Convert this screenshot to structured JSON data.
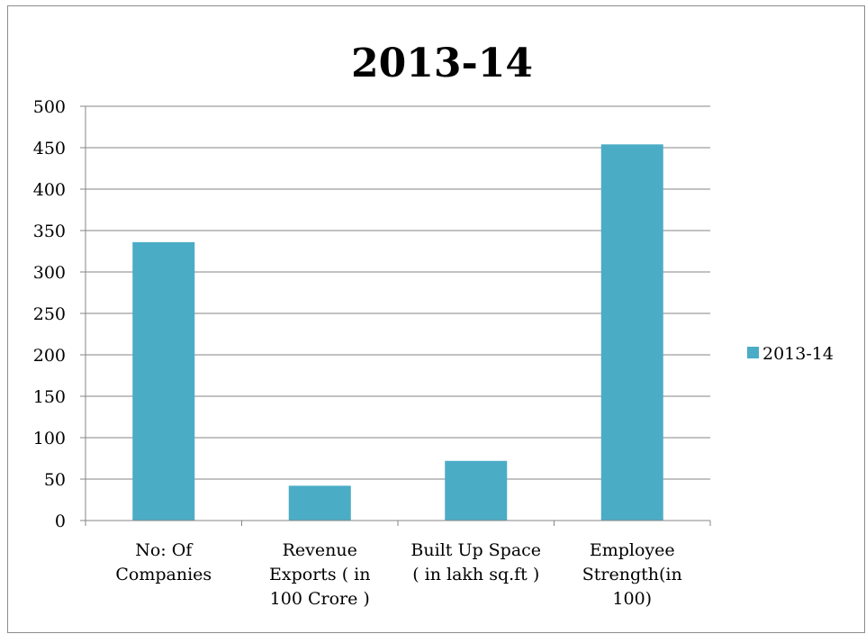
{
  "chart_data": {
    "type": "bar",
    "title": "2013-14",
    "categories": [
      [
        "No: Of",
        "Companies"
      ],
      [
        "Revenue",
        "Exports ( in",
        "100 Crore )"
      ],
      [
        "Built Up Space",
        "( in lakh sq.ft )"
      ],
      [
        "Employee",
        "Strength(in",
        "100)"
      ]
    ],
    "series": [
      {
        "name": "2013-14",
        "values": [
          336,
          42,
          72,
          454
        ]
      }
    ],
    "yticks": [
      "0",
      "50",
      "100",
      "150",
      "200",
      "250",
      "300",
      "350",
      "400",
      "450",
      "500"
    ],
    "ylim": [
      0,
      500
    ],
    "grid": true,
    "legend": "right",
    "colors": {
      "bar": "#4bacc6",
      "grid": "#868686",
      "axis": "#868686"
    }
  }
}
